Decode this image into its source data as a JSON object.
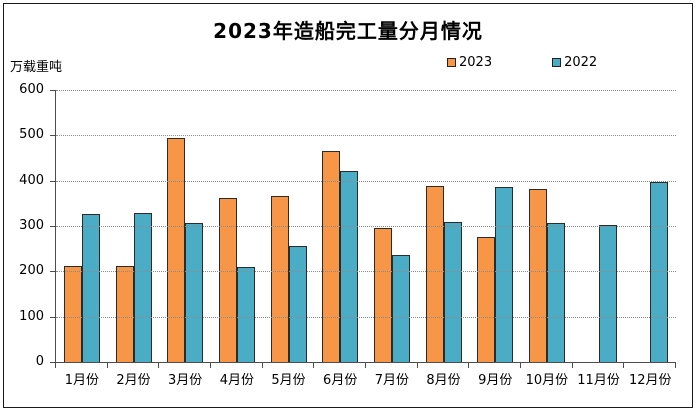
{
  "chart_data": {
    "type": "bar",
    "title": "2023年造船完工量分月情况",
    "unit_label": "万载重吨",
    "categories": [
      "1月份",
      "2月份",
      "3月份",
      "4月份",
      "5月份",
      "6月份",
      "7月份",
      "8月份",
      "9月份",
      "10月份",
      "11月份",
      "12月份"
    ],
    "series": [
      {
        "name": "2023",
        "color": "#F79646",
        "values": [
          211,
          211,
          494,
          362,
          367,
          465,
          296,
          389,
          275,
          381,
          null,
          null
        ]
      },
      {
        "name": "2022",
        "color": "#4BACC6",
        "values": [
          326,
          328,
          307,
          210,
          257,
          422,
          235,
          309,
          385,
          307,
          303,
          396
        ]
      }
    ],
    "ylim": [
      0,
      600
    ],
    "ytick_interval": 100,
    "ytick_labels": [
      "0",
      "100",
      "200",
      "300",
      "400",
      "500",
      "600"
    ],
    "xlabel": "",
    "ylabel": "",
    "grid": "horizontal-dotted",
    "legend_position": "top-right",
    "colors": {
      "bar_border": "#2b2b2b",
      "axis": "#4d4d4d",
      "gridline": "#8c8c8c",
      "frame_border": "#1a1a1a",
      "background": "#ffffff"
    }
  }
}
